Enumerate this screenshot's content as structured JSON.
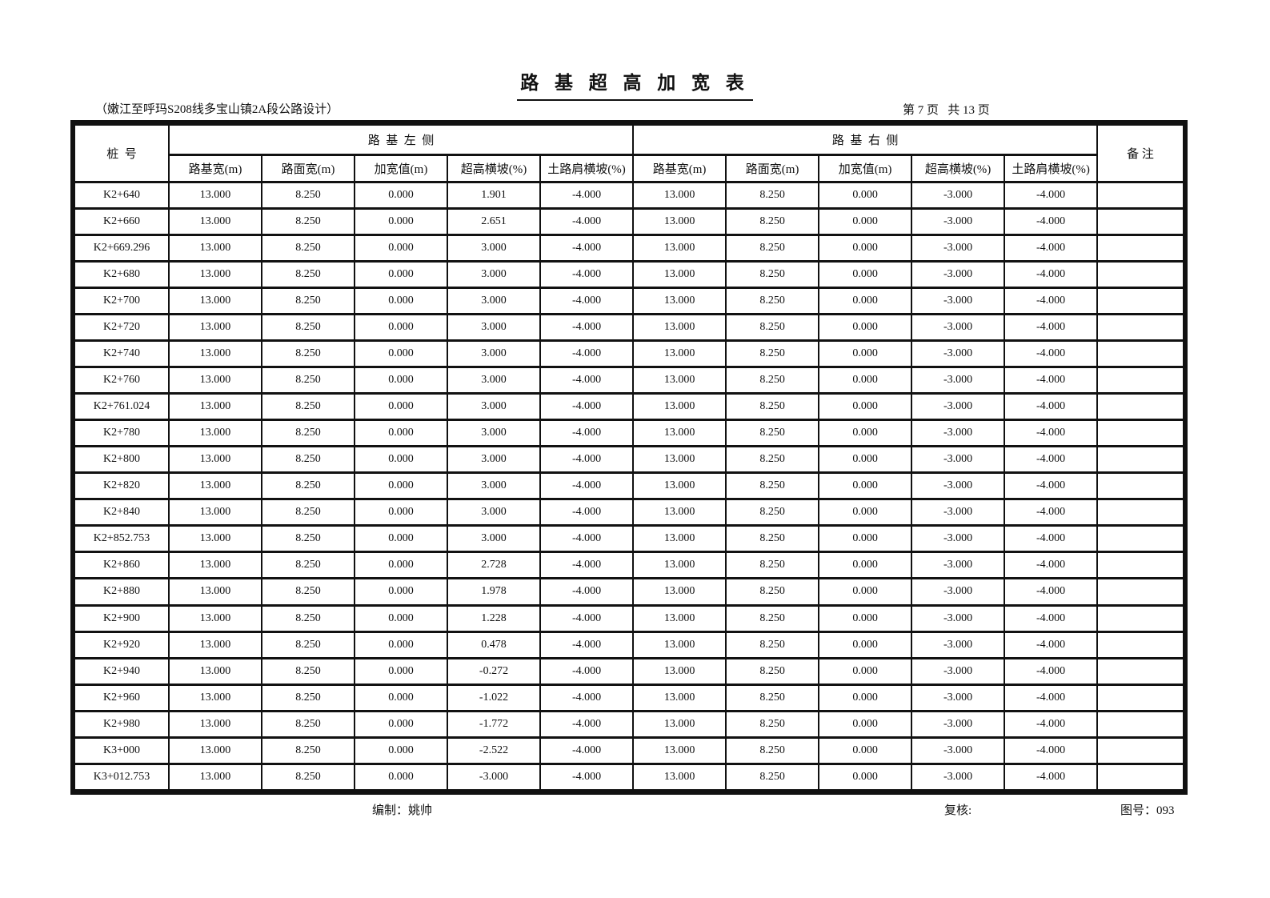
{
  "title": "路 基 超 高 加 宽 表",
  "subtitle": "（嫩江至呼玛S208线多宝山镇2A段公路设计）",
  "page_info": "第 7 页   共 13 页",
  "table": {
    "header": {
      "stake": "桩  号",
      "left_group": "路  基  左  侧",
      "right_group": "路  基  右  侧",
      "remark": "备 注",
      "sub_columns": [
        "路基宽(m)",
        "路面宽(m)",
        "加宽值(m)",
        "超高横坡(%)",
        "土路肩横坡(%)"
      ]
    },
    "rows": [
      {
        "stake": "K2+640",
        "left": [
          "13.000",
          "8.250",
          "0.000",
          "1.901",
          "-4.000"
        ],
        "right": [
          "13.000",
          "8.250",
          "0.000",
          "-3.000",
          "-4.000"
        ],
        "remark": ""
      },
      {
        "stake": "K2+660",
        "left": [
          "13.000",
          "8.250",
          "0.000",
          "2.651",
          "-4.000"
        ],
        "right": [
          "13.000",
          "8.250",
          "0.000",
          "-3.000",
          "-4.000"
        ],
        "remark": ""
      },
      {
        "stake": "K2+669.296",
        "left": [
          "13.000",
          "8.250",
          "0.000",
          "3.000",
          "-4.000"
        ],
        "right": [
          "13.000",
          "8.250",
          "0.000",
          "-3.000",
          "-4.000"
        ],
        "remark": ""
      },
      {
        "stake": "K2+680",
        "left": [
          "13.000",
          "8.250",
          "0.000",
          "3.000",
          "-4.000"
        ],
        "right": [
          "13.000",
          "8.250",
          "0.000",
          "-3.000",
          "-4.000"
        ],
        "remark": ""
      },
      {
        "stake": "K2+700",
        "left": [
          "13.000",
          "8.250",
          "0.000",
          "3.000",
          "-4.000"
        ],
        "right": [
          "13.000",
          "8.250",
          "0.000",
          "-3.000",
          "-4.000"
        ],
        "remark": ""
      },
      {
        "stake": "K2+720",
        "left": [
          "13.000",
          "8.250",
          "0.000",
          "3.000",
          "-4.000"
        ],
        "right": [
          "13.000",
          "8.250",
          "0.000",
          "-3.000",
          "-4.000"
        ],
        "remark": ""
      },
      {
        "stake": "K2+740",
        "left": [
          "13.000",
          "8.250",
          "0.000",
          "3.000",
          "-4.000"
        ],
        "right": [
          "13.000",
          "8.250",
          "0.000",
          "-3.000",
          "-4.000"
        ],
        "remark": ""
      },
      {
        "stake": "K2+760",
        "left": [
          "13.000",
          "8.250",
          "0.000",
          "3.000",
          "-4.000"
        ],
        "right": [
          "13.000",
          "8.250",
          "0.000",
          "-3.000",
          "-4.000"
        ],
        "remark": ""
      },
      {
        "stake": "K2+761.024",
        "left": [
          "13.000",
          "8.250",
          "0.000",
          "3.000",
          "-4.000"
        ],
        "right": [
          "13.000",
          "8.250",
          "0.000",
          "-3.000",
          "-4.000"
        ],
        "remark": ""
      },
      {
        "stake": "K2+780",
        "left": [
          "13.000",
          "8.250",
          "0.000",
          "3.000",
          "-4.000"
        ],
        "right": [
          "13.000",
          "8.250",
          "0.000",
          "-3.000",
          "-4.000"
        ],
        "remark": ""
      },
      {
        "stake": "K2+800",
        "left": [
          "13.000",
          "8.250",
          "0.000",
          "3.000",
          "-4.000"
        ],
        "right": [
          "13.000",
          "8.250",
          "0.000",
          "-3.000",
          "-4.000"
        ],
        "remark": ""
      },
      {
        "stake": "K2+820",
        "left": [
          "13.000",
          "8.250",
          "0.000",
          "3.000",
          "-4.000"
        ],
        "right": [
          "13.000",
          "8.250",
          "0.000",
          "-3.000",
          "-4.000"
        ],
        "remark": ""
      },
      {
        "stake": "K2+840",
        "left": [
          "13.000",
          "8.250",
          "0.000",
          "3.000",
          "-4.000"
        ],
        "right": [
          "13.000",
          "8.250",
          "0.000",
          "-3.000",
          "-4.000"
        ],
        "remark": ""
      },
      {
        "stake": "K2+852.753",
        "left": [
          "13.000",
          "8.250",
          "0.000",
          "3.000",
          "-4.000"
        ],
        "right": [
          "13.000",
          "8.250",
          "0.000",
          "-3.000",
          "-4.000"
        ],
        "remark": ""
      },
      {
        "stake": "K2+860",
        "left": [
          "13.000",
          "8.250",
          "0.000",
          "2.728",
          "-4.000"
        ],
        "right": [
          "13.000",
          "8.250",
          "0.000",
          "-3.000",
          "-4.000"
        ],
        "remark": ""
      },
      {
        "stake": "K2+880",
        "left": [
          "13.000",
          "8.250",
          "0.000",
          "1.978",
          "-4.000"
        ],
        "right": [
          "13.000",
          "8.250",
          "0.000",
          "-3.000",
          "-4.000"
        ],
        "remark": ""
      },
      {
        "stake": "K2+900",
        "left": [
          "13.000",
          "8.250",
          "0.000",
          "1.228",
          "-4.000"
        ],
        "right": [
          "13.000",
          "8.250",
          "0.000",
          "-3.000",
          "-4.000"
        ],
        "remark": ""
      },
      {
        "stake": "K2+920",
        "left": [
          "13.000",
          "8.250",
          "0.000",
          "0.478",
          "-4.000"
        ],
        "right": [
          "13.000",
          "8.250",
          "0.000",
          "-3.000",
          "-4.000"
        ],
        "remark": ""
      },
      {
        "stake": "K2+940",
        "left": [
          "13.000",
          "8.250",
          "0.000",
          "-0.272",
          "-4.000"
        ],
        "right": [
          "13.000",
          "8.250",
          "0.000",
          "-3.000",
          "-4.000"
        ],
        "remark": ""
      },
      {
        "stake": "K2+960",
        "left": [
          "13.000",
          "8.250",
          "0.000",
          "-1.022",
          "-4.000"
        ],
        "right": [
          "13.000",
          "8.250",
          "0.000",
          "-3.000",
          "-4.000"
        ],
        "remark": ""
      },
      {
        "stake": "K2+980",
        "left": [
          "13.000",
          "8.250",
          "0.000",
          "-1.772",
          "-4.000"
        ],
        "right": [
          "13.000",
          "8.250",
          "0.000",
          "-3.000",
          "-4.000"
        ],
        "remark": ""
      },
      {
        "stake": "K3+000",
        "left": [
          "13.000",
          "8.250",
          "0.000",
          "-2.522",
          "-4.000"
        ],
        "right": [
          "13.000",
          "8.250",
          "0.000",
          "-3.000",
          "-4.000"
        ],
        "remark": ""
      },
      {
        "stake": "K3+012.753",
        "left": [
          "13.000",
          "8.250",
          "0.000",
          "-3.000",
          "-4.000"
        ],
        "right": [
          "13.000",
          "8.250",
          "0.000",
          "-3.000",
          "-4.000"
        ],
        "remark": ""
      }
    ]
  },
  "footer": {
    "compiler": "编制：姚帅",
    "reviewer": "复核:",
    "drawing_no": "图号：093"
  }
}
